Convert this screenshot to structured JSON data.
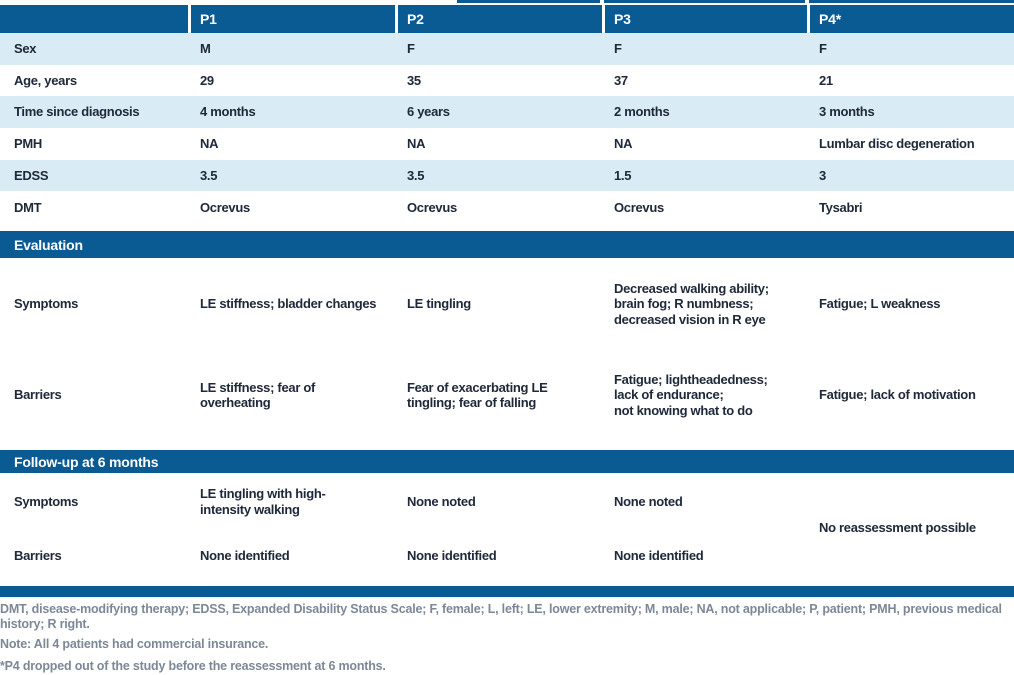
{
  "table": {
    "columns": [
      "",
      "P1",
      "P2",
      "P3",
      "P4*"
    ],
    "demographics": [
      {
        "label": "Sex",
        "p1": "M",
        "p2": "F",
        "p3": "F",
        "p4": "F"
      },
      {
        "label": "Age, years",
        "p1": "29",
        "p2": "35",
        "p3": "37",
        "p4": "21"
      },
      {
        "label": "Time since diagnosis",
        "p1": "4 months",
        "p2": "6 years",
        "p3": "2 months",
        "p4": "3 months"
      },
      {
        "label": "PMH",
        "p1": "NA",
        "p2": "NA",
        "p3": "NA",
        "p4": "Lumbar disc degeneration"
      },
      {
        "label": "EDSS",
        "p1": "3.5",
        "p2": "3.5",
        "p3": "1.5",
        "p4": "3"
      },
      {
        "label": "DMT",
        "p1": "Ocrevus",
        "p2": "Ocrevus",
        "p3": "Ocrevus",
        "p4": "Tysabri"
      }
    ],
    "evaluation": {
      "title": "Evaluation",
      "rows": [
        {
          "label": "Symptoms",
          "p1": "LE stiffness; bladder changes",
          "p2": "LE tingling",
          "p3": "Decreased walking ability;\nbrain fog; R numbness;\ndecreased vision in R eye",
          "p4": "Fatigue; L weakness"
        },
        {
          "label": "Barriers",
          "p1": "LE stiffness; fear of\noverheating",
          "p2": "Fear of exacerbating LE\ntingling; fear of falling",
          "p3": "Fatigue; lightheadedness;\nlack of endurance;\nnot knowing what to do",
          "p4": "Fatigue; lack of motivation"
        }
      ]
    },
    "followup": {
      "title": "Follow-up at 6 months",
      "rows": [
        {
          "label": "Symptoms",
          "p1": "LE tingling with high-\nintensity walking",
          "p2": "None noted",
          "p3": "None noted"
        },
        {
          "label": "Barriers",
          "p1": "None identified",
          "p2": "None identified",
          "p3": "None identified"
        }
      ],
      "p4_note": "No reassessment possible"
    }
  },
  "footnotes": {
    "abbreviations": "DMT, disease-modifying therapy; EDSS, Expanded Disability Status Scale; F, female; L, left; LE, lower extremity; M, male; NA, not applicable; P, patient; PMH, previous medical history; R right.",
    "note": "Note: All 4 patients had commercial insurance.",
    "asterisk": "*P4 dropped out of the study before the reassessment at 6 months."
  },
  "colors": {
    "header_blue": "#0a5a94",
    "row_shade": "#d9ecf6",
    "body_text": "#20293a",
    "footnote_gray": "#7d8896"
  }
}
